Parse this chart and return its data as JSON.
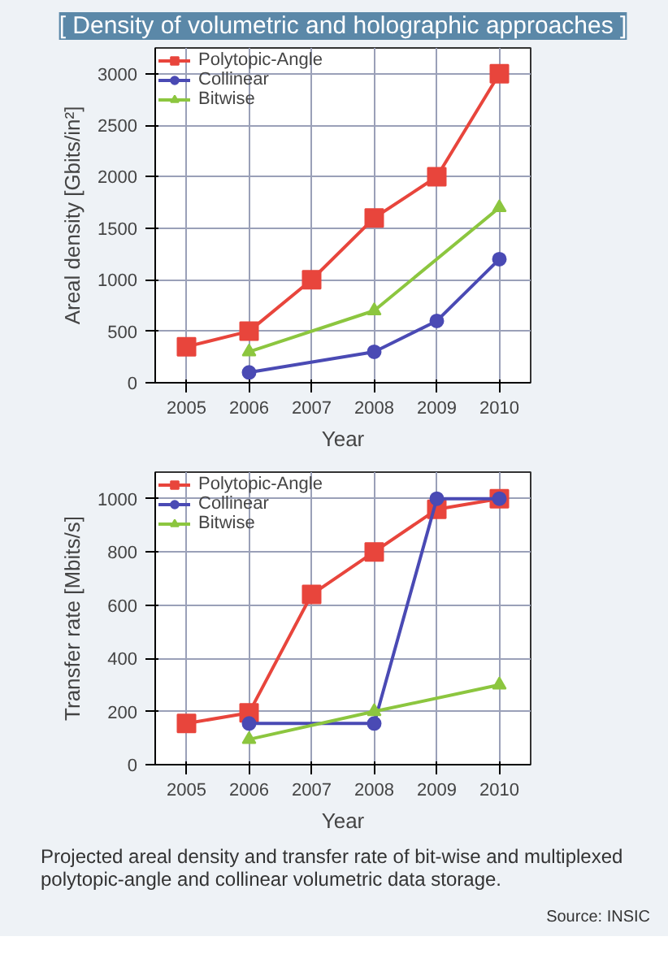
{
  "chart_data": [
    {
      "type": "line",
      "title": "[ Density of volumetric and holographic approaches ]",
      "xlabel": "Year",
      "ylabel": "Areal density [Gbits/in²]",
      "xlim": [
        2004.5,
        2010.5
      ],
      "xticks": [
        2005,
        2006,
        2007,
        2008,
        2009,
        2010
      ],
      "ylim": [
        0,
        3250
      ],
      "yticks": [
        0,
        500,
        1000,
        1500,
        2000,
        2500,
        3000
      ],
      "grid": true,
      "legend": "top left",
      "line_style": "solid",
      "series": [
        {
          "name": "Polytopic-Angle",
          "color": "#e8453c",
          "marker": "square",
          "x": [
            2005,
            2006,
            2007,
            2008,
            2009,
            2010
          ],
          "values": [
            350,
            500,
            1000,
            1600,
            2000,
            3000
          ]
        },
        {
          "name": "Collinear",
          "color": "#4a4ab4",
          "marker": "circle",
          "x": [
            2006,
            2008,
            2009,
            2010
          ],
          "values": [
            100,
            300,
            600,
            1200
          ]
        },
        {
          "name": "Bitwise",
          "color": "#8cc63f",
          "marker": "triangle",
          "x": [
            2006,
            2008,
            2010
          ],
          "values": [
            300,
            700,
            1700
          ]
        }
      ]
    },
    {
      "type": "line",
      "xlabel": "Year",
      "ylabel": "Transfer rate [Mbits/s]",
      "xlim": [
        2004.5,
        2010.5
      ],
      "xticks": [
        2005,
        2006,
        2007,
        2008,
        2009,
        2010
      ],
      "ylim": [
        0,
        1100
      ],
      "yticks": [
        0,
        200,
        400,
        600,
        800,
        1000
      ],
      "grid": true,
      "legend": "top left",
      "line_style": "solid",
      "annotations": [
        "Projected areal density and transfer rate of bit-wise and multiplexed polytopic-angle and collinear volumetric data storage.",
        "Source: INSIC"
      ],
      "series": [
        {
          "name": "Polytopic-Angle",
          "color": "#e8453c",
          "marker": "square",
          "x": [
            2005,
            2006,
            2007,
            2008,
            2009,
            2010
          ],
          "values": [
            155,
            195,
            640,
            800,
            960,
            1000
          ]
        },
        {
          "name": "Collinear",
          "color": "#4a4ab4",
          "marker": "circle",
          "x": [
            2006,
            2008,
            2009,
            2010
          ],
          "values": [
            155,
            155,
            1000,
            1000
          ]
        },
        {
          "name": "Bitwise",
          "color": "#8cc63f",
          "marker": "triangle",
          "x": [
            2006,
            2008,
            2010
          ],
          "values": [
            95,
            200,
            300
          ]
        }
      ]
    }
  ]
}
